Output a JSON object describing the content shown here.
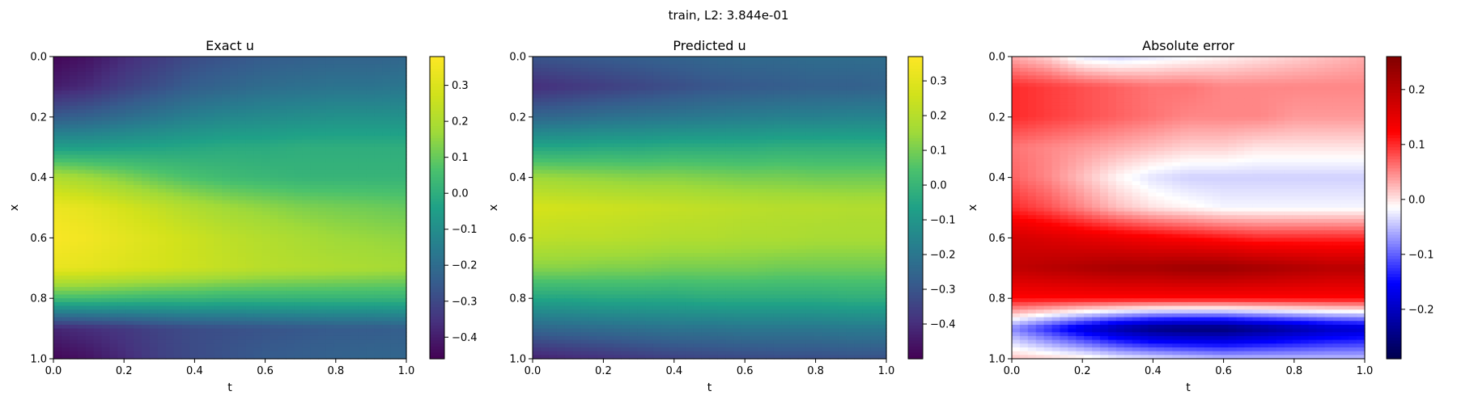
{
  "figure_title": "train, L2: 3.844e-01",
  "chart_data": [
    {
      "type": "heatmap",
      "title": "Exact u",
      "xlabel": "t",
      "ylabel": "x",
      "xlim": [
        0.0,
        1.0
      ],
      "ylim": [
        1.0,
        0.0
      ],
      "x_ticks": [
        "0.0",
        "0.2",
        "0.4",
        "0.6",
        "0.8",
        "1.0"
      ],
      "y_ticks": [
        "0.0",
        "0.2",
        "0.4",
        "0.6",
        "0.8",
        "1.0"
      ],
      "colormap": "viridis",
      "colorbar_range": [
        -0.46,
        0.38
      ],
      "colorbar_ticks": [
        "0.3",
        "0.2",
        "0.1",
        "0.0",
        "−0.1",
        "−0.2",
        "−0.3",
        "−0.4"
      ],
      "x": [
        0.0,
        0.1,
        0.2,
        0.3,
        0.4,
        0.5,
        0.6,
        0.7,
        0.8,
        0.9,
        1.0
      ],
      "y": [
        0.0,
        0.1,
        0.2,
        0.3,
        0.4,
        0.5,
        0.6,
        0.7,
        0.8,
        0.9,
        1.0
      ],
      "values": [
        [
          -0.45,
          -0.42,
          -0.37,
          -0.33,
          -0.29,
          -0.27,
          -0.25,
          -0.24,
          -0.23,
          -0.23,
          -0.22
        ],
        [
          -0.4,
          -0.37,
          -0.32,
          -0.28,
          -0.24,
          -0.22,
          -0.2,
          -0.19,
          -0.18,
          -0.18,
          -0.17
        ],
        [
          -0.25,
          -0.23,
          -0.2,
          -0.17,
          -0.14,
          -0.12,
          -0.11,
          -0.1,
          -0.09,
          -0.09,
          -0.09
        ],
        [
          -0.05,
          -0.05,
          -0.04,
          -0.03,
          -0.02,
          -0.01,
          -0.01,
          0.0,
          0.0,
          0.0,
          0.0
        ],
        [
          0.2,
          0.17,
          0.13,
          0.09,
          0.06,
          0.04,
          0.03,
          0.02,
          0.02,
          0.02,
          0.02
        ],
        [
          0.34,
          0.32,
          0.28,
          0.24,
          0.2,
          0.17,
          0.15,
          0.13,
          0.12,
          0.11,
          0.1
        ],
        [
          0.37,
          0.35,
          0.32,
          0.29,
          0.26,
          0.23,
          0.21,
          0.19,
          0.17,
          0.16,
          0.15
        ],
        [
          0.33,
          0.32,
          0.3,
          0.28,
          0.26,
          0.24,
          0.22,
          0.21,
          0.2,
          0.19,
          0.18
        ],
        [
          0.05,
          0.05,
          0.04,
          0.03,
          0.03,
          0.02,
          0.02,
          0.02,
          0.02,
          0.02,
          0.02
        ],
        [
          -0.38,
          -0.36,
          -0.34,
          -0.31,
          -0.29,
          -0.28,
          -0.27,
          -0.26,
          -0.25,
          -0.25,
          -0.24
        ],
        [
          -0.45,
          -0.42,
          -0.37,
          -0.32,
          -0.29,
          -0.27,
          -0.25,
          -0.24,
          -0.23,
          -0.22,
          -0.22
        ]
      ]
    },
    {
      "type": "heatmap",
      "title": "Predicted u",
      "xlabel": "t",
      "ylabel": "x",
      "xlim": [
        0.0,
        1.0
      ],
      "ylim": [
        1.0,
        0.0
      ],
      "x_ticks": [
        "0.0",
        "0.2",
        "0.4",
        "0.6",
        "0.8",
        "1.0"
      ],
      "y_ticks": [
        "0.0",
        "0.2",
        "0.4",
        "0.6",
        "0.8",
        "1.0"
      ],
      "colormap": "viridis",
      "colorbar_range": [
        -0.5,
        0.37
      ],
      "colorbar_ticks": [
        "0.3",
        "0.2",
        "0.1",
        "0.0",
        "−0.1",
        "−0.2",
        "−0.3",
        "−0.4"
      ],
      "x": [
        0.0,
        0.1,
        0.2,
        0.3,
        0.4,
        0.5,
        0.6,
        0.7,
        0.8,
        0.9,
        1.0
      ],
      "y": [
        0.0,
        0.1,
        0.2,
        0.3,
        0.4,
        0.5,
        0.6,
        0.7,
        0.8,
        0.9,
        1.0
      ],
      "values": [
        [
          -0.3,
          -0.29,
          -0.28,
          -0.27,
          -0.26,
          -0.25,
          -0.24,
          -0.24,
          -0.23,
          -0.23,
          -0.23
        ],
        [
          -0.4,
          -0.38,
          -0.36,
          -0.34,
          -0.32,
          -0.3,
          -0.29,
          -0.28,
          -0.27,
          -0.27,
          -0.26
        ],
        [
          -0.25,
          -0.24,
          -0.22,
          -0.21,
          -0.2,
          -0.19,
          -0.18,
          -0.17,
          -0.17,
          -0.16,
          -0.16
        ],
        [
          -0.05,
          -0.05,
          -0.04,
          -0.04,
          -0.03,
          -0.03,
          -0.03,
          -0.02,
          -0.02,
          -0.02,
          -0.02
        ],
        [
          0.15,
          0.14,
          0.13,
          0.12,
          0.12,
          0.11,
          0.1,
          0.1,
          0.09,
          0.09,
          0.09
        ],
        [
          0.27,
          0.26,
          0.25,
          0.24,
          0.23,
          0.22,
          0.21,
          0.2,
          0.2,
          0.19,
          0.19
        ],
        [
          0.22,
          0.21,
          0.21,
          0.2,
          0.19,
          0.19,
          0.18,
          0.18,
          0.17,
          0.17,
          0.17
        ],
        [
          0.12,
          0.12,
          0.11,
          0.11,
          0.1,
          0.1,
          0.1,
          0.09,
          0.09,
          0.09,
          0.09
        ],
        [
          -0.05,
          -0.05,
          -0.04,
          -0.04,
          -0.04,
          -0.03,
          -0.03,
          -0.03,
          -0.03,
          -0.02,
          -0.02
        ],
        [
          -0.25,
          -0.24,
          -0.23,
          -0.22,
          -0.21,
          -0.21,
          -0.2,
          -0.2,
          -0.2,
          -0.19,
          -0.19
        ],
        [
          -0.43,
          -0.41,
          -0.39,
          -0.37,
          -0.35,
          -0.34,
          -0.33,
          -0.32,
          -0.32,
          -0.31,
          -0.31
        ]
      ]
    },
    {
      "type": "heatmap",
      "title": "Absolute error",
      "xlabel": "t",
      "ylabel": "x",
      "xlim": [
        0.0,
        1.0
      ],
      "ylim": [
        1.0,
        0.0
      ],
      "x_ticks": [
        "0.0",
        "0.2",
        "0.4",
        "0.6",
        "0.8",
        "1.0"
      ],
      "y_ticks": [
        "0.0",
        "0.2",
        "0.4",
        "0.6",
        "0.8",
        "1.0"
      ],
      "colormap": "seismic",
      "colorbar_range": [
        -0.29,
        0.26
      ],
      "colorbar_ticks": [
        "0.2",
        "0.1",
        "0.0",
        "−0.1",
        "−0.2"
      ],
      "x": [
        0.0,
        0.1,
        0.2,
        0.3,
        0.4,
        0.5,
        0.6,
        0.7,
        0.8,
        0.9,
        1.0
      ],
      "y": [
        0.0,
        0.1,
        0.2,
        0.3,
        0.4,
        0.5,
        0.6,
        0.7,
        0.8,
        0.9,
        1.0
      ],
      "values": [
        [
          0.03,
          0.01,
          -0.03,
          -0.04,
          -0.03,
          -0.02,
          -0.01,
          0.0,
          0.01,
          0.02,
          0.03
        ],
        [
          0.1,
          0.09,
          0.08,
          0.07,
          0.06,
          0.06,
          0.05,
          0.05,
          0.05,
          0.05,
          0.05
        ],
        [
          0.1,
          0.09,
          0.08,
          0.07,
          0.06,
          0.05,
          0.05,
          0.05,
          0.04,
          0.04,
          0.04
        ],
        [
          0.06,
          0.05,
          0.04,
          0.03,
          0.02,
          0.01,
          0.01,
          0.0,
          0.0,
          0.0,
          0.0
        ],
        [
          0.07,
          0.05,
          0.02,
          -0.01,
          -0.03,
          -0.04,
          -0.04,
          -0.04,
          -0.04,
          -0.04,
          -0.04
        ],
        [
          0.1,
          0.08,
          0.05,
          0.02,
          0.0,
          -0.01,
          -0.02,
          -0.02,
          -0.02,
          -0.02,
          -0.02
        ],
        [
          0.17,
          0.16,
          0.15,
          0.14,
          0.13,
          0.12,
          0.11,
          0.1,
          0.1,
          0.1,
          0.1
        ],
        [
          0.19,
          0.2,
          0.21,
          0.22,
          0.22,
          0.23,
          0.23,
          0.22,
          0.21,
          0.2,
          0.2
        ],
        [
          0.12,
          0.12,
          0.12,
          0.12,
          0.12,
          0.12,
          0.12,
          0.12,
          0.12,
          0.12,
          0.12
        ],
        [
          -0.08,
          -0.13,
          -0.18,
          -0.22,
          -0.25,
          -0.26,
          -0.26,
          -0.24,
          -0.22,
          -0.2,
          -0.19
        ],
        [
          0.02,
          0.01,
          0.0,
          -0.02,
          -0.03,
          -0.04,
          -0.05,
          -0.05,
          -0.05,
          -0.05,
          -0.05
        ]
      ]
    }
  ]
}
